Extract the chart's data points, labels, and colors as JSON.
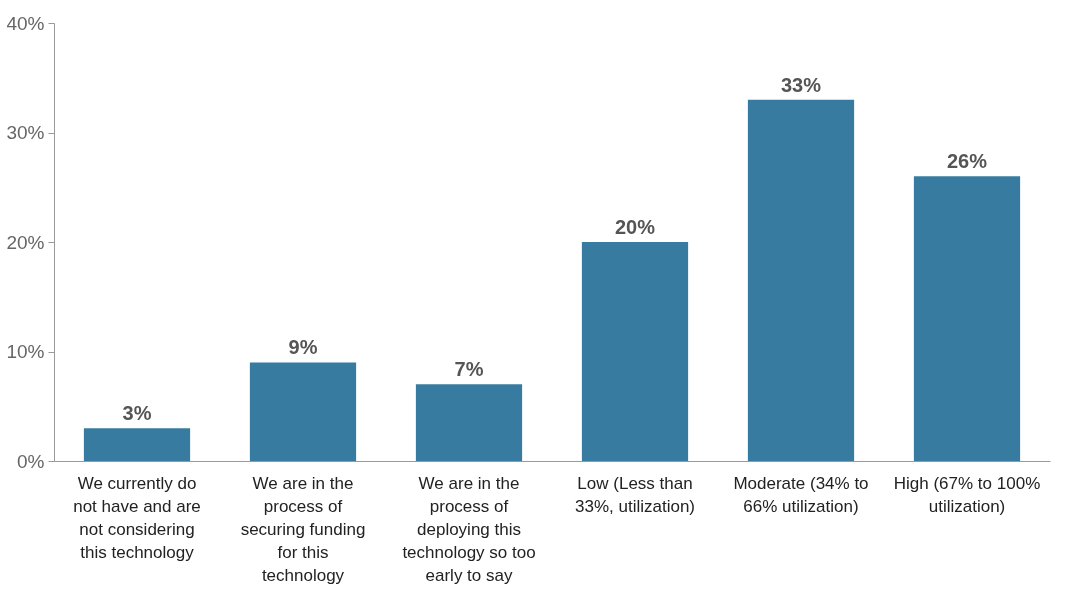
{
  "chart_data": {
    "type": "bar",
    "categories": [
      "We currently do not have and are not considering this technology",
      "We are in the process of securing funding for this technology",
      "We are in the process of deploying this technology so too early to say",
      "Low (Less than 33%, utilization)",
      "Moderate (34% to 66% utilization)",
      "High (67% to 100% utilization)"
    ],
    "values": [
      3,
      9,
      7,
      20,
      33,
      26
    ],
    "value_labels": [
      "3%",
      "9%",
      "7%",
      "20%",
      "33%",
      "26%"
    ],
    "color": "#377ca0",
    "ylim": [
      0,
      40
    ],
    "yticks": [
      {
        "value": 0,
        "label": "0%"
      },
      {
        "value": 10,
        "label": "10%"
      },
      {
        "value": 20,
        "label": "20%"
      },
      {
        "value": 30,
        "label": "30%"
      },
      {
        "value": 40,
        "label": "40%"
      }
    ],
    "grid": false
  }
}
